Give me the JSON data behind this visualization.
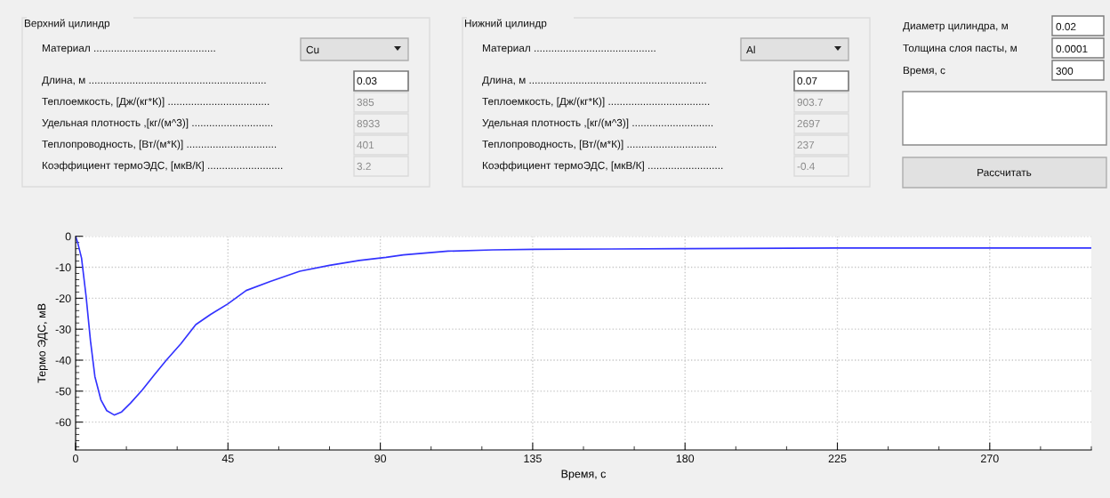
{
  "chart_data": [
    {
      "type": "other",
      "annotations": [
        "Верхний цилиндр",
        "Материал ..........................................",
        "Cu",
        "Длина, м .............................................................",
        "0.03",
        "Теплоемкость, [Дж/(кг*К)] ...................................",
        "385",
        "Удельная плотность ,[кг/(м^3)] ............................",
        "8933",
        "Теплопроводность, [Вт/(м*К)] ...............................",
        "401",
        "Коэффициент термоЭДС, [мкВ/К] ..........................",
        "3.2",
        "Нижний цилиндр",
        "Материал ..........................................",
        "Al",
        "Длина, м .............................................................",
        "0.07",
        "Теплоемкость, [Дж/(кг*К)] ...................................",
        "903.7",
        "Удельная плотность ,[кг/(м^3)] ............................",
        "2697",
        "Теплопроводность, [Вт/(м*К)] ...............................",
        "237",
        "Коэффициент термоЭДС, [мкВ/К] ..........................",
        "-0.4",
        "Диаметр цилиндра, м",
        "0.02",
        "Толщина слоя пасты, м",
        "0.0001",
        "Время, с",
        "300",
        "Рассчитать"
      ]
    },
    {
      "type": "line",
      "xlabel": "Время, с",
      "ylabel": "Термо ЭДС, мВ",
      "xlim": [
        0,
        300
      ],
      "ylim": [
        -69,
        0
      ],
      "xticks": [
        0,
        {
          "value": 15,
          "label": null
        },
        {
          "value": 30,
          "label": null
        },
        45,
        {
          "value": 60,
          "label": null
        },
        {
          "value": 75,
          "label": null
        },
        90,
        {
          "value": 105,
          "label": null
        },
        {
          "value": 120,
          "label": null
        },
        135,
        {
          "value": 150,
          "label": null
        },
        {
          "value": 165,
          "label": null
        },
        180,
        {
          "value": 195,
          "label": null
        },
        {
          "value": 210,
          "label": null
        },
        225,
        {
          "value": 240,
          "label": null
        },
        {
          "value": 255,
          "label": null
        },
        270,
        {
          "value": 285,
          "label": null
        },
        {
          "value": 300,
          "label": null
        }
      ],
      "yticks": [
        0,
        {
          "value": -2,
          "label": null
        },
        {
          "value": -4,
          "label": null
        },
        {
          "value": -6,
          "label": null
        },
        {
          "value": -8,
          "label": null
        },
        -10,
        {
          "value": -12,
          "label": null
        },
        {
          "value": -14,
          "label": null
        },
        {
          "value": -16,
          "label": null
        },
        {
          "value": -18,
          "label": null
        },
        -20,
        {
          "value": -22,
          "label": null
        },
        {
          "value": -24,
          "label": null
        },
        {
          "value": -26,
          "label": null
        },
        {
          "value": -28,
          "label": null
        },
        -30,
        {
          "value": -32,
          "label": null
        },
        {
          "value": -34,
          "label": null
        },
        {
          "value": -36,
          "label": null
        },
        {
          "value": -38,
          "label": null
        },
        -40,
        {
          "value": -42,
          "label": null
        },
        {
          "value": -44,
          "label": null
        },
        {
          "value": -46,
          "label": null
        },
        {
          "value": -48,
          "label": null
        },
        -50,
        {
          "value": -52,
          "label": null
        },
        {
          "value": -54,
          "label": null
        },
        {
          "value": -56,
          "label": null
        },
        {
          "value": -58,
          "label": null
        },
        -60,
        {
          "value": -62,
          "label": null
        },
        {
          "value": -64,
          "label": null
        },
        {
          "value": -66,
          "label": null
        },
        {
          "value": -68,
          "label": null
        }
      ],
      "grid": true,
      "marker": "none",
      "line_style": "solid",
      "x": [
        0,
        0.6,
        1.75,
        3.1,
        4.4,
        5.7,
        7.5,
        9.2,
        11.4,
        13.6,
        16.2,
        19.7,
        23.2,
        26.8,
        31.1,
        35.5,
        39.9,
        45,
        50.4,
        57.5,
        66.2,
        75,
        83.8,
        91.7,
        96.8,
        110,
        123.2,
        135.5,
        158.3,
        180.3,
        225,
        270,
        300
      ],
      "series": [
        {
          "color": "#3333ff",
          "values": [
            0,
            -2,
            -7,
            -19.4,
            -33.8,
            -45.3,
            -52.9,
            -56.3,
            -57.7,
            -56.7,
            -53.9,
            -49.6,
            -44.8,
            -40,
            -34.7,
            -28.5,
            -25.2,
            -21.8,
            -17.5,
            -14.6,
            -11.3,
            -9.4,
            -7.8,
            -6.8,
            -6.0,
            -4.8,
            -4.4,
            -4.2,
            -4.1,
            -4.0,
            -3.8,
            -3.8,
            -3.8
          ]
        }
      ]
    }
  ]
}
